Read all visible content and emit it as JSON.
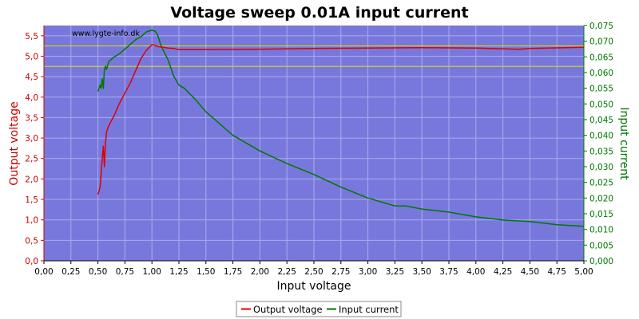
{
  "chart_data": {
    "type": "line",
    "title": "Voltage sweep 0.01A input current",
    "xlabel": "Input voltage",
    "ylabel_left": "Output voltage",
    "ylabel_right": "Input current",
    "watermark": "www.lygte-info.dk",
    "xlim": [
      0,
      5
    ],
    "ylim_left": [
      0,
      5.75
    ],
    "ylim_right": [
      0,
      0.075
    ],
    "grid": true,
    "legend_placement": "bottom-center",
    "x_ticks": [
      "0,00",
      "0,25",
      "0,50",
      "0,75",
      "1,00",
      "1,25",
      "1,50",
      "1,75",
      "2,00",
      "2,25",
      "2,50",
      "2,75",
      "3,00",
      "3,25",
      "3,50",
      "3,75",
      "4,00",
      "4,25",
      "4,50",
      "4,75",
      "5,00"
    ],
    "y_left_ticks": [
      "0,0",
      "0,5",
      "1,0",
      "1,5",
      "2,0",
      "2,5",
      "3,0",
      "3,5",
      "4,0",
      "4,5",
      "5,0",
      "5,5"
    ],
    "y_right_ticks": [
      "0,000",
      "0,005",
      "0,010",
      "0,015",
      "0,020",
      "0,025",
      "0,030",
      "0,035",
      "0,040",
      "0,045",
      "0,050",
      "0,055",
      "0,060",
      "0,065",
      "0,070",
      "0,075"
    ],
    "reference_lines_left": [
      5.25,
      4.75
    ],
    "colors": {
      "plot_bg": "#7878dc",
      "grid": "#aaaaee",
      "output_voltage": "#dd0000",
      "input_current": "#007700",
      "reference": "#dddd00",
      "left_axis": "#cc0000",
      "right_axis": "#007700"
    },
    "series": [
      {
        "name": "Output voltage",
        "axis": "left",
        "x": [
          0.5,
          0.52,
          0.54,
          0.55,
          0.56,
          0.57,
          0.575,
          0.58,
          0.6,
          0.62,
          0.65,
          0.7,
          0.75,
          0.8,
          0.85,
          0.9,
          0.95,
          1.0,
          1.02,
          1.05,
          1.1,
          1.15,
          1.2,
          1.25,
          1.5,
          2.0,
          2.5,
          3.0,
          3.5,
          4.0,
          4.4,
          4.5,
          5.0
        ],
        "y": [
          1.62,
          1.8,
          2.5,
          2.8,
          2.3,
          2.9,
          3.0,
          3.15,
          3.3,
          3.4,
          3.55,
          3.85,
          4.1,
          4.35,
          4.65,
          4.95,
          5.15,
          5.28,
          5.27,
          5.24,
          5.22,
          5.2,
          5.19,
          5.16,
          5.16,
          5.17,
          5.19,
          5.2,
          5.21,
          5.2,
          5.17,
          5.19,
          5.22
        ]
      },
      {
        "name": "Input current",
        "axis": "right",
        "x": [
          0.5,
          0.52,
          0.53,
          0.54,
          0.55,
          0.56,
          0.57,
          0.58,
          0.6,
          0.65,
          0.7,
          0.75,
          0.8,
          0.85,
          0.9,
          0.95,
          1.0,
          1.03,
          1.05,
          1.08,
          1.1,
          1.15,
          1.2,
          1.25,
          1.3,
          1.4,
          1.5,
          1.75,
          2.0,
          2.25,
          2.5,
          2.75,
          3.0,
          3.25,
          3.35,
          3.5,
          3.75,
          4.0,
          4.25,
          4.5,
          4.75,
          5.0
        ],
        "y": [
          0.054,
          0.056,
          0.055,
          0.058,
          0.055,
          0.061,
          0.062,
          0.061,
          0.0635,
          0.065,
          0.066,
          0.0675,
          0.069,
          0.0705,
          0.0715,
          0.073,
          0.0735,
          0.0732,
          0.0722,
          0.069,
          0.0675,
          0.064,
          0.059,
          0.056,
          0.055,
          0.0515,
          0.0475,
          0.04,
          0.035,
          0.031,
          0.0275,
          0.0235,
          0.02,
          0.0175,
          0.0175,
          0.0165,
          0.0155,
          0.014,
          0.013,
          0.0125,
          0.0115,
          0.011
        ]
      }
    ]
  }
}
